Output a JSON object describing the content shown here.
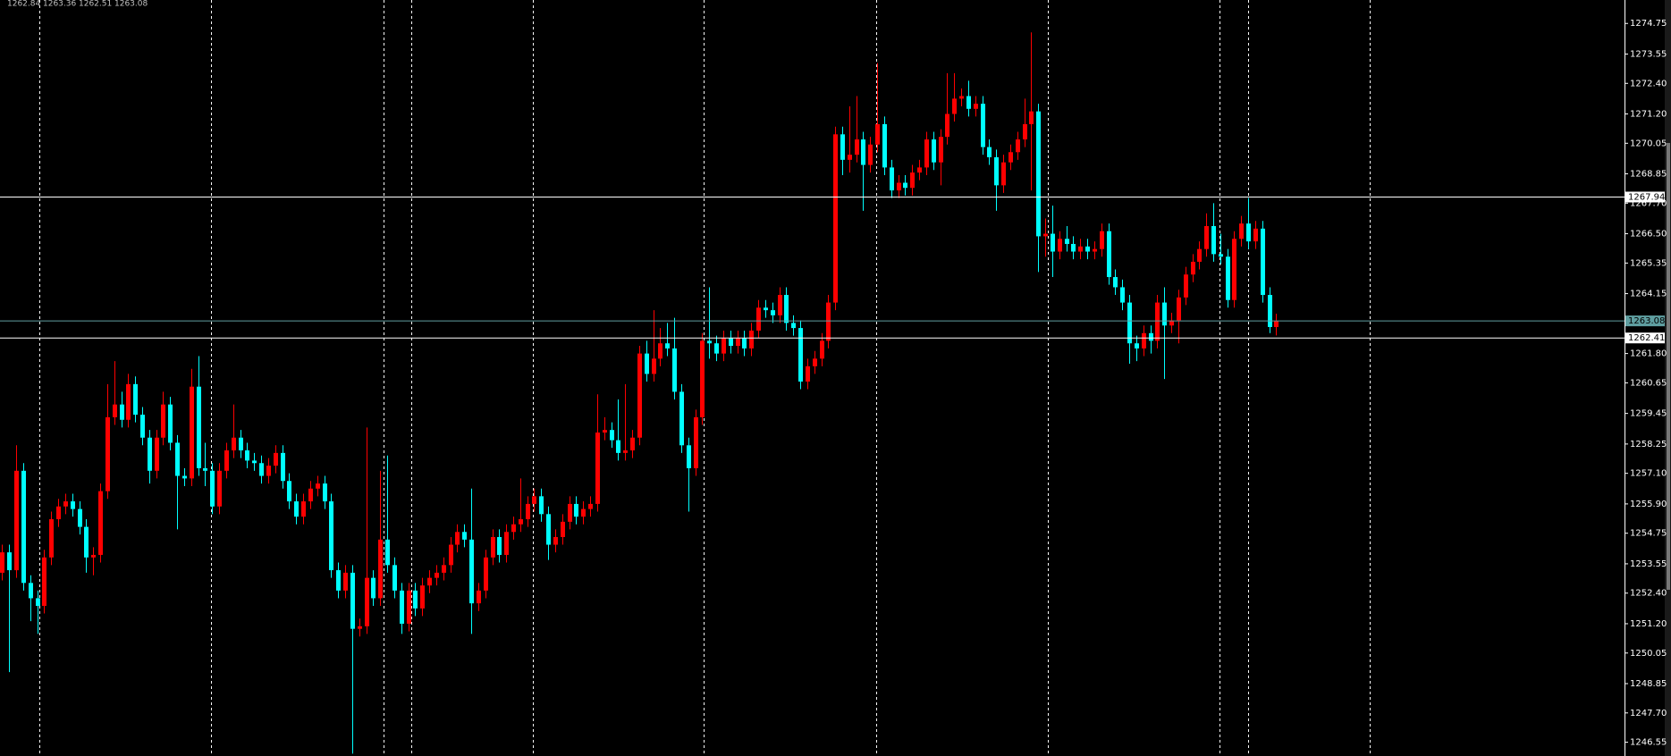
{
  "chart_data": {
    "type": "candlestick",
    "open": [
      1253.2,
      1254.0,
      1253.3,
      1257.2,
      1252.8,
      1252.2,
      1251.9,
      1253.8,
      1255.3,
      1255.8,
      1256.0,
      1255.7,
      1255.0,
      1253.8,
      1253.9,
      1256.4,
      1259.3,
      1259.8,
      1259.2,
      1260.6,
      1259.4,
      1258.5,
      1257.2,
      1258.5,
      1259.8,
      1258.3,
      1257.0,
      1256.9,
      1260.5,
      1257.3,
      1257.2,
      1255.8,
      1257.2,
      1258.0,
      1258.5,
      1258.0,
      1257.6,
      1257.5,
      1257.0,
      1257.4,
      1257.9,
      1256.8,
      1256.0,
      1255.4,
      1256.0,
      1256.5,
      1256.7,
      1256.0,
      1253.3,
      1252.5,
      1253.2,
      1251.0,
      1251.1,
      1253.0,
      1252.2,
      1254.5,
      1253.5,
      1252.5,
      1251.2,
      1252.5,
      1251.8,
      1252.7,
      1253.0,
      1253.2,
      1253.5,
      1254.3,
      1254.8,
      1254.5,
      1252.0,
      1252.5,
      1253.8,
      1254.6,
      1253.9,
      1254.8,
      1255.1,
      1255.3,
      1255.9,
      1256.2,
      1255.5,
      1254.3,
      1254.6,
      1255.2,
      1255.9,
      1255.4,
      1255.7,
      1255.9,
      1258.7,
      1258.8,
      1258.4,
      1257.9,
      1258.0,
      1258.5,
      1261.8,
      1261.0,
      1261.6,
      1262.2,
      1262.0,
      1260.3,
      1258.2,
      1257.3,
      1259.3,
      1262.3,
      1262.2,
      1261.8,
      1262.4,
      1262.1,
      1262.4,
      1262.0,
      1262.7,
      1263.6,
      1263.5,
      1263.3,
      1264.1,
      1263.0,
      1262.8,
      1260.7,
      1261.3,
      1261.6,
      1262.3,
      1263.8,
      1270.4,
      1269.4,
      1269.6,
      1270.2,
      1269.2,
      1270.0,
      1270.8,
      1269.1,
      1268.2,
      1268.5,
      1268.3,
      1268.9,
      1269.1,
      1270.2,
      1269.3,
      1270.3,
      1271.2,
      1271.8,
      1271.9,
      1271.4,
      1271.6,
      1269.9,
      1269.5,
      1268.4,
      1269.3,
      1269.7,
      1270.2,
      1270.8,
      1271.3,
      1266.4,
      1266.5,
      1265.8,
      1266.3,
      1266.1,
      1265.8,
      1266.0,
      1265.8,
      1265.9,
      1266.6,
      1264.8,
      1264.4,
      1263.8,
      1262.2,
      1262.0,
      1262.6,
      1262.3,
      1263.8,
      1262.9,
      1263.1,
      1264.0,
      1264.9,
      1265.4,
      1265.9,
      1266.8,
      1265.7,
      1265.6,
      1263.9,
      1266.3,
      1266.9,
      1266.2,
      1266.7,
      1264.1,
      1262.84
    ],
    "high": [
      1254.3,
      1254.3,
      1258.2,
      1257.5,
      1253.1,
      1252.5,
      1254.1,
      1255.6,
      1256.1,
      1256.3,
      1256.3,
      1256.0,
      1255.3,
      1254.2,
      1256.7,
      1260.6,
      1261.5,
      1260.3,
      1261.0,
      1260.9,
      1259.7,
      1258.8,
      1258.8,
      1260.3,
      1260.1,
      1258.6,
      1257.3,
      1261.2,
      1261.7,
      1258.3,
      1257.5,
      1257.5,
      1258.3,
      1259.8,
      1258.8,
      1258.3,
      1257.9,
      1257.8,
      1257.7,
      1258.2,
      1258.2,
      1257.1,
      1256.3,
      1256.3,
      1256.8,
      1257.0,
      1257.0,
      1256.3,
      1253.6,
      1253.5,
      1253.5,
      1251.4,
      1258.9,
      1253.3,
      1257.2,
      1257.8,
      1253.8,
      1252.8,
      1252.8,
      1252.8,
      1253.0,
      1253.3,
      1253.5,
      1253.8,
      1254.6,
      1255.1,
      1255.1,
      1256.5,
      1252.8,
      1254.1,
      1254.9,
      1254.9,
      1255.1,
      1255.4,
      1256.9,
      1256.2,
      1256.5,
      1256.5,
      1255.8,
      1254.9,
      1255.5,
      1256.2,
      1256.2,
      1256.0,
      1256.2,
      1260.2,
      1259.3,
      1259.1,
      1260.0,
      1260.6,
      1258.8,
      1262.1,
      1262.3,
      1263.5,
      1262.8,
      1263.0,
      1263.2,
      1260.6,
      1258.5,
      1259.6,
      1262.6,
      1264.4,
      1262.5,
      1262.7,
      1262.7,
      1262.7,
      1262.7,
      1263.0,
      1263.9,
      1263.9,
      1263.8,
      1264.4,
      1264.4,
      1263.3,
      1263.1,
      1261.6,
      1261.9,
      1262.6,
      1264.1,
      1270.7,
      1270.7,
      1271.5,
      1271.9,
      1270.5,
      1270.3,
      1273.2,
      1271.1,
      1269.4,
      1268.8,
      1268.8,
      1269.2,
      1269.4,
      1270.5,
      1270.5,
      1270.6,
      1272.8,
      1272.8,
      1272.2,
      1272.5,
      1271.9,
      1271.9,
      1270.2,
      1269.8,
      1269.6,
      1270.0,
      1270.5,
      1271.8,
      1274.4,
      1271.6,
      1267.1,
      1267.6,
      1266.6,
      1266.8,
      1266.4,
      1266.3,
      1266.3,
      1266.2,
      1266.9,
      1266.9,
      1265.1,
      1264.7,
      1264.1,
      1262.5,
      1262.9,
      1262.9,
      1264.1,
      1264.4,
      1263.4,
      1264.3,
      1265.2,
      1265.7,
      1266.2,
      1267.3,
      1267.7,
      1266.5,
      1265.9,
      1266.6,
      1267.2,
      1267.9,
      1267.0,
      1267.0,
      1264.4,
      1263.36
    ],
    "low": [
      1252.9,
      1249.3,
      1253.0,
      1252.5,
      1251.3,
      1250.8,
      1251.6,
      1253.5,
      1255.0,
      1255.5,
      1255.4,
      1254.7,
      1253.2,
      1253.1,
      1253.6,
      1256.1,
      1259.0,
      1258.9,
      1258.9,
      1259.1,
      1258.2,
      1256.7,
      1256.9,
      1258.2,
      1258.0,
      1254.9,
      1256.6,
      1256.6,
      1257.0,
      1256.6,
      1255.5,
      1255.5,
      1256.9,
      1257.7,
      1257.7,
      1257.3,
      1257.2,
      1256.7,
      1256.7,
      1257.1,
      1256.5,
      1255.7,
      1255.1,
      1255.1,
      1255.7,
      1256.2,
      1255.7,
      1253.0,
      1252.2,
      1252.2,
      1246.1,
      1250.7,
      1250.8,
      1251.9,
      1251.9,
      1253.2,
      1252.2,
      1250.8,
      1250.9,
      1251.5,
      1251.5,
      1252.4,
      1252.7,
      1252.9,
      1253.2,
      1254.0,
      1254.2,
      1250.8,
      1251.7,
      1252.2,
      1253.5,
      1253.6,
      1253.6,
      1254.5,
      1254.8,
      1255.0,
      1255.6,
      1255.2,
      1253.7,
      1254.0,
      1254.3,
      1254.9,
      1255.1,
      1255.1,
      1255.4,
      1255.6,
      1258.4,
      1258.1,
      1257.6,
      1257.6,
      1257.7,
      1258.2,
      1260.7,
      1260.7,
      1261.3,
      1261.7,
      1260.0,
      1257.9,
      1255.6,
      1257.0,
      1259.0,
      1261.6,
      1261.5,
      1261.5,
      1261.8,
      1261.8,
      1261.7,
      1261.7,
      1262.4,
      1263.2,
      1263.0,
      1263.0,
      1262.7,
      1262.5,
      1260.4,
      1260.4,
      1261.0,
      1261.3,
      1262.0,
      1263.5,
      1268.8,
      1268.9,
      1269.3,
      1267.4,
      1268.9,
      1269.7,
      1268.8,
      1267.9,
      1267.9,
      1268.0,
      1268.0,
      1268.6,
      1268.8,
      1269.0,
      1268.4,
      1270.0,
      1270.9,
      1271.5,
      1271.1,
      1271.1,
      1269.6,
      1269.2,
      1267.4,
      1268.1,
      1269.0,
      1269.4,
      1269.9,
      1268.2,
      1265.0,
      1265.6,
      1264.8,
      1265.5,
      1265.8,
      1265.5,
      1265.5,
      1265.5,
      1265.5,
      1265.6,
      1264.5,
      1264.1,
      1263.5,
      1261.4,
      1261.5,
      1261.7,
      1261.8,
      1262.0,
      1260.8,
      1262.6,
      1262.2,
      1263.7,
      1264.6,
      1265.1,
      1265.6,
      1265.4,
      1265.3,
      1263.6,
      1263.6,
      1266.0,
      1265.9,
      1265.9,
      1263.8,
      1262.6,
      1262.51
    ],
    "close": [
      1254.0,
      1253.3,
      1257.2,
      1252.8,
      1252.2,
      1251.9,
      1253.8,
      1255.3,
      1255.8,
      1256.0,
      1255.7,
      1255.0,
      1253.8,
      1253.9,
      1256.4,
      1259.3,
      1259.8,
      1259.2,
      1260.6,
      1259.4,
      1258.5,
      1257.2,
      1258.5,
      1259.8,
      1258.3,
      1257.0,
      1256.9,
      1260.5,
      1257.3,
      1257.2,
      1255.8,
      1257.2,
      1258.0,
      1258.5,
      1258.0,
      1257.6,
      1257.5,
      1257.0,
      1257.4,
      1257.9,
      1256.8,
      1256.0,
      1255.4,
      1256.0,
      1256.5,
      1256.7,
      1256.0,
      1253.3,
      1252.5,
      1253.2,
      1251.0,
      1251.1,
      1253.0,
      1252.2,
      1254.5,
      1253.5,
      1252.5,
      1251.2,
      1252.5,
      1251.8,
      1252.7,
      1253.0,
      1253.2,
      1253.5,
      1254.3,
      1254.8,
      1254.5,
      1252.0,
      1252.5,
      1253.8,
      1254.6,
      1253.9,
      1254.8,
      1255.1,
      1255.3,
      1255.9,
      1256.2,
      1255.5,
      1254.3,
      1254.6,
      1255.2,
      1255.9,
      1255.4,
      1255.7,
      1255.9,
      1258.7,
      1258.8,
      1258.4,
      1257.9,
      1258.0,
      1258.5,
      1261.8,
      1261.0,
      1261.6,
      1262.2,
      1262.0,
      1260.3,
      1258.2,
      1257.3,
      1259.3,
      1262.3,
      1262.2,
      1261.8,
      1262.4,
      1262.1,
      1262.4,
      1262.0,
      1262.7,
      1263.6,
      1263.5,
      1263.3,
      1264.1,
      1263.0,
      1262.8,
      1260.7,
      1261.3,
      1261.6,
      1262.3,
      1263.8,
      1270.4,
      1269.4,
      1269.6,
      1270.2,
      1269.2,
      1270.0,
      1270.8,
      1269.1,
      1268.2,
      1268.5,
      1268.3,
      1268.9,
      1269.1,
      1270.2,
      1269.3,
      1270.3,
      1271.2,
      1271.8,
      1271.9,
      1271.4,
      1271.6,
      1269.9,
      1269.5,
      1268.4,
      1269.3,
      1269.7,
      1270.2,
      1270.8,
      1271.3,
      1266.4,
      1266.5,
      1265.8,
      1266.3,
      1266.1,
      1265.8,
      1266.0,
      1265.8,
      1265.9,
      1266.6,
      1264.8,
      1264.4,
      1263.8,
      1262.2,
      1262.0,
      1262.6,
      1262.3,
      1263.8,
      1262.9,
      1263.1,
      1264.0,
      1264.9,
      1265.4,
      1265.9,
      1266.8,
      1265.7,
      1265.6,
      1263.9,
      1266.3,
      1266.9,
      1266.2,
      1266.7,
      1264.1,
      1262.84,
      1263.08
    ],
    "up_color": "#ff0000",
    "down_color": "#00ffff",
    "ylim": [
      1246.01,
      1275.67
    ],
    "yticks": [
      1274.75,
      1273.55,
      {
        "value": 1272.4,
        "label": "1272.40"
      },
      {
        "value": 1271.2,
        "label": "1271.20"
      },
      1270.05,
      1268.85,
      {
        "value": 1267.7,
        "label": "1267.70"
      },
      {
        "value": 1266.5,
        "label": "1266.50"
      },
      1265.35,
      1264.15,
      {
        "value": 1261.8,
        "label": "1261.80"
      },
      1260.65,
      1259.45,
      1258.25,
      {
        "value": 1257.1,
        "label": "1257.10"
      },
      {
        "value": 1255.9,
        "label": "1255.90"
      },
      1254.75,
      1253.55,
      {
        "value": 1252.4,
        "label": "1252.40"
      },
      {
        "value": 1251.2,
        "label": "1251.20"
      },
      1250.05,
      1248.85,
      {
        "value": 1247.7,
        "label": "1247.70"
      },
      1246.55
    ],
    "hlines": [
      1267.94,
      1262.41
    ],
    "hline_color": "#ffffff",
    "bid_color": "#5f9ea0",
    "grid": true
  }
}
